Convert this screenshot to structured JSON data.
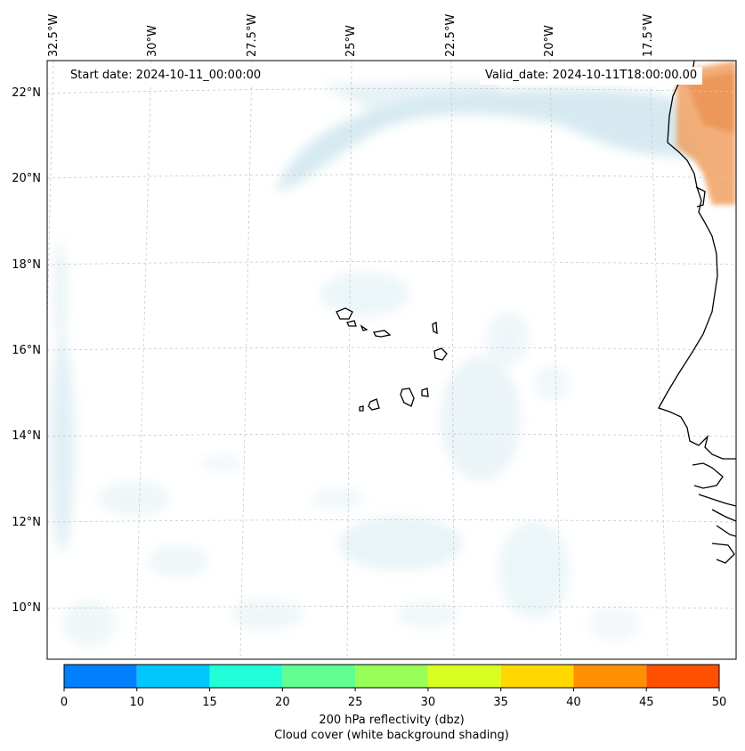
{
  "map": {
    "start_date_text": "Start date: 2024-10-11_00:00:00",
    "valid_date_text": "Valid_date: 2024-10-11T18:00:00.00",
    "lon_labels": [
      "32.5°W",
      "30°W",
      "27.5°W",
      "25°W",
      "22.5°W",
      "20°W",
      "17.5°W"
    ],
    "lat_labels": [
      "22°N",
      "20°N",
      "18°N",
      "16°N",
      "14°N",
      "12°N",
      "10°N"
    ],
    "cloud_color": "#d4e9ef",
    "coastline_color": "#000000",
    "hot_region_color": "#f0a060"
  },
  "colorbar": {
    "ticks": [
      "0",
      "10",
      "15",
      "20",
      "25",
      "30",
      "35",
      "40",
      "45",
      "50"
    ],
    "colors": [
      "#0080ff",
      "#00c8ff",
      "#20ffd8",
      "#60ff90",
      "#98ff58",
      "#d8ff20",
      "#ffd800",
      "#ff9000",
      "#ff5000"
    ],
    "label_line1": "200 hPa reflectivity (dbz)",
    "label_line2": "Cloud cover (white background shading)"
  }
}
